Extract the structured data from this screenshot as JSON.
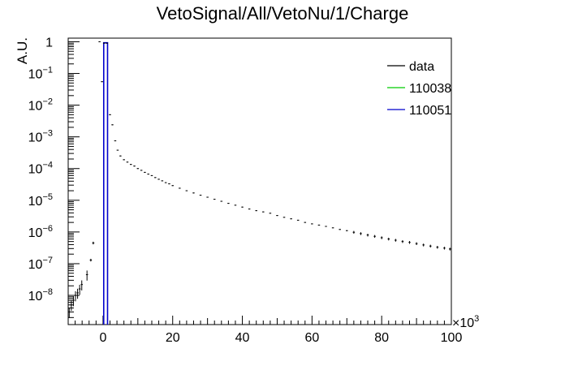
{
  "chart_data": {
    "type": "scatter",
    "title": "VetoSignal/All/VetoNu/1/Charge",
    "xlabel": "",
    "ylabel": "A.U.",
    "x_multiplier_label": "×10",
    "x_multiplier_exp": "3",
    "xlim": [
      -10,
      100
    ],
    "ylim": [
      1.2e-09,
      1.3
    ],
    "yscale": "log",
    "x_ticks": [
      {
        "value": 0,
        "label": "0"
      },
      {
        "value": 20,
        "label": "20"
      },
      {
        "value": 40,
        "label": "40"
      },
      {
        "value": 60,
        "label": "60"
      },
      {
        "value": 80,
        "label": "80"
      },
      {
        "value": 100,
        "label": "100"
      }
    ],
    "y_ticks": [
      {
        "value": 1e-08,
        "base": "10",
        "exp": "−8"
      },
      {
        "value": 1e-07,
        "base": "10",
        "exp": "−7"
      },
      {
        "value": 1e-06,
        "base": "10",
        "exp": "−6"
      },
      {
        "value": 1e-05,
        "base": "10",
        "exp": "−5"
      },
      {
        "value": 0.0001,
        "base": "10",
        "exp": "−4"
      },
      {
        "value": 0.001,
        "base": "10",
        "exp": "−3"
      },
      {
        "value": 0.01,
        "base": "10",
        "exp": "−2"
      },
      {
        "value": 0.1,
        "base": "10",
        "exp": "−1"
      },
      {
        "value": 1,
        "base": "1",
        "exp": ""
      }
    ],
    "legend_position": "top-right",
    "series": [
      {
        "name": "data",
        "color": "#000000",
        "style": "markers-with-errorbars",
        "bin_width": 0.6,
        "points": [
          [
            -9.7,
            3e-09
          ],
          [
            -9.1,
            5e-09
          ],
          [
            -8.5,
            7e-09
          ],
          [
            -7.9,
            1e-08
          ],
          [
            -7.3,
            1.2e-08
          ],
          [
            -6.7,
            1.6e-08
          ],
          [
            -6.1,
            2.2e-08
          ],
          [
            -4.6,
            4.5e-08
          ],
          [
            -3.5,
            1.3e-07
          ],
          [
            -2.8,
            4.5e-07
          ],
          [
            -1.0,
            1.0
          ],
          [
            -0.3,
            0.055
          ],
          [
            0.3,
            0.9
          ],
          [
            1.1,
            0.9
          ],
          [
            2.0,
            0.005
          ],
          [
            2.7,
            0.0024
          ],
          [
            3.5,
            0.00075
          ],
          [
            4.2,
            0.00038
          ],
          [
            5.0,
            0.00025
          ],
          [
            6.0,
            0.00019
          ],
          [
            7.0,
            0.00016
          ],
          [
            8.0,
            0.000135
          ],
          [
            9.0,
            0.00012
          ],
          [
            10.0,
            0.0001
          ],
          [
            11.0,
            8.8e-05
          ],
          [
            12.0,
            7.6e-05
          ],
          [
            13.0,
            6.7e-05
          ],
          [
            14.0,
            6e-05
          ],
          [
            15.0,
            5.2e-05
          ],
          [
            16.0,
            4.6e-05
          ],
          [
            17.0,
            4.1e-05
          ],
          [
            18.0,
            3.6e-05
          ],
          [
            19.0,
            3.3e-05
          ],
          [
            20.0,
            2.9e-05
          ],
          [
            22.0,
            2.4e-05
          ],
          [
            24.0,
            2e-05
          ],
          [
            26.0,
            1.7e-05
          ],
          [
            28.0,
            1.45e-05
          ],
          [
            30.0,
            1.25e-05
          ],
          [
            32.0,
            1.08e-05
          ],
          [
            34.0,
            9.3e-06
          ],
          [
            36.0,
            8e-06
          ],
          [
            38.0,
            7e-06
          ],
          [
            40.0,
            6.1e-06
          ],
          [
            42.0,
            5.3e-06
          ],
          [
            44.0,
            4.7e-06
          ],
          [
            46.0,
            4.3e-06
          ],
          [
            48.0,
            3.9e-06
          ],
          [
            50.0,
            3.3e-06
          ],
          [
            52.0,
            2.9e-06
          ],
          [
            54.0,
            2.6e-06
          ],
          [
            56.0,
            2.35e-06
          ],
          [
            58.0,
            2e-06
          ],
          [
            60.0,
            1.8e-06
          ],
          [
            62.0,
            1.65e-06
          ],
          [
            64.0,
            1.5e-06
          ],
          [
            66.0,
            1.35e-06
          ],
          [
            68.0,
            1.2e-06
          ],
          [
            70.0,
            1.1e-06
          ],
          [
            72.0,
            9.8e-07
          ],
          [
            74.0,
            8.9e-07
          ],
          [
            76.0,
            8e-07
          ],
          [
            78.0,
            7.3e-07
          ],
          [
            80.0,
            6.6e-07
          ],
          [
            82.0,
            6e-07
          ],
          [
            84.0,
            5.5e-07
          ],
          [
            86.0,
            5e-07
          ],
          [
            88.0,
            4.7e-07
          ],
          [
            90.0,
            4.3e-07
          ],
          [
            92.0,
            3.9e-07
          ],
          [
            94.0,
            3.6e-07
          ],
          [
            96.0,
            3.3e-07
          ],
          [
            98.0,
            3.1e-07
          ],
          [
            99.6,
            2.9e-07
          ]
        ]
      },
      {
        "name": "110038",
        "color": "#00cc00",
        "style": "histogram",
        "bars": []
      },
      {
        "name": "110051",
        "color": "#0000cc",
        "style": "histogram",
        "bars": [
          {
            "x0": 0.2,
            "x1": 1.3,
            "value": 0.93
          }
        ]
      }
    ]
  }
}
